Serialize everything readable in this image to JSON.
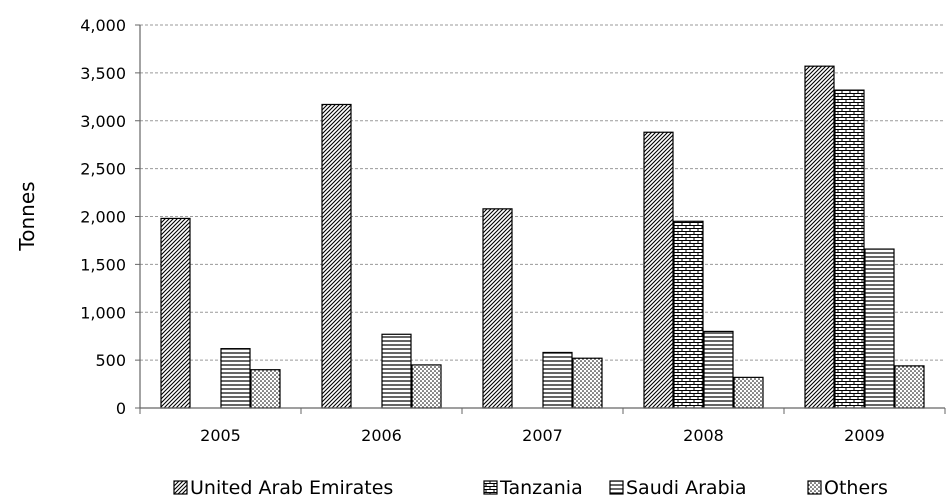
{
  "chart_data": {
    "type": "bar",
    "title": "",
    "xlabel": "",
    "ylabel": "Tonnes",
    "ylim": [
      0,
      4000
    ],
    "y_ticks": [
      "0",
      "500",
      "1,000",
      "1,500",
      "2,000",
      "2,500",
      "3,000",
      "3,500",
      "4,000"
    ],
    "y_tick_values": [
      0,
      500,
      1000,
      1500,
      2000,
      2500,
      3000,
      3500,
      4000
    ],
    "categories": [
      "2005",
      "2006",
      "2007",
      "2008",
      "2009"
    ],
    "grid": true,
    "legend_position": "bottom",
    "series": [
      {
        "name": "United Arab Emirates",
        "pattern": "diagonal-hatch",
        "values": [
          1980,
          3170,
          2080,
          2880,
          3570
        ]
      },
      {
        "name": "Tanzania",
        "pattern": "brick",
        "values": [
          0,
          0,
          0,
          1950,
          3320
        ]
      },
      {
        "name": "Saudi Arabia",
        "pattern": "horizontal-stripes",
        "values": [
          620,
          770,
          580,
          800,
          1660
        ]
      },
      {
        "name": "Others",
        "pattern": "dots",
        "values": [
          400,
          450,
          520,
          320,
          440
        ]
      }
    ],
    "colors": {
      "bar_stroke": "#000000",
      "grid": "#9a9a9a",
      "axis": "#666666",
      "text": "#000000"
    }
  }
}
